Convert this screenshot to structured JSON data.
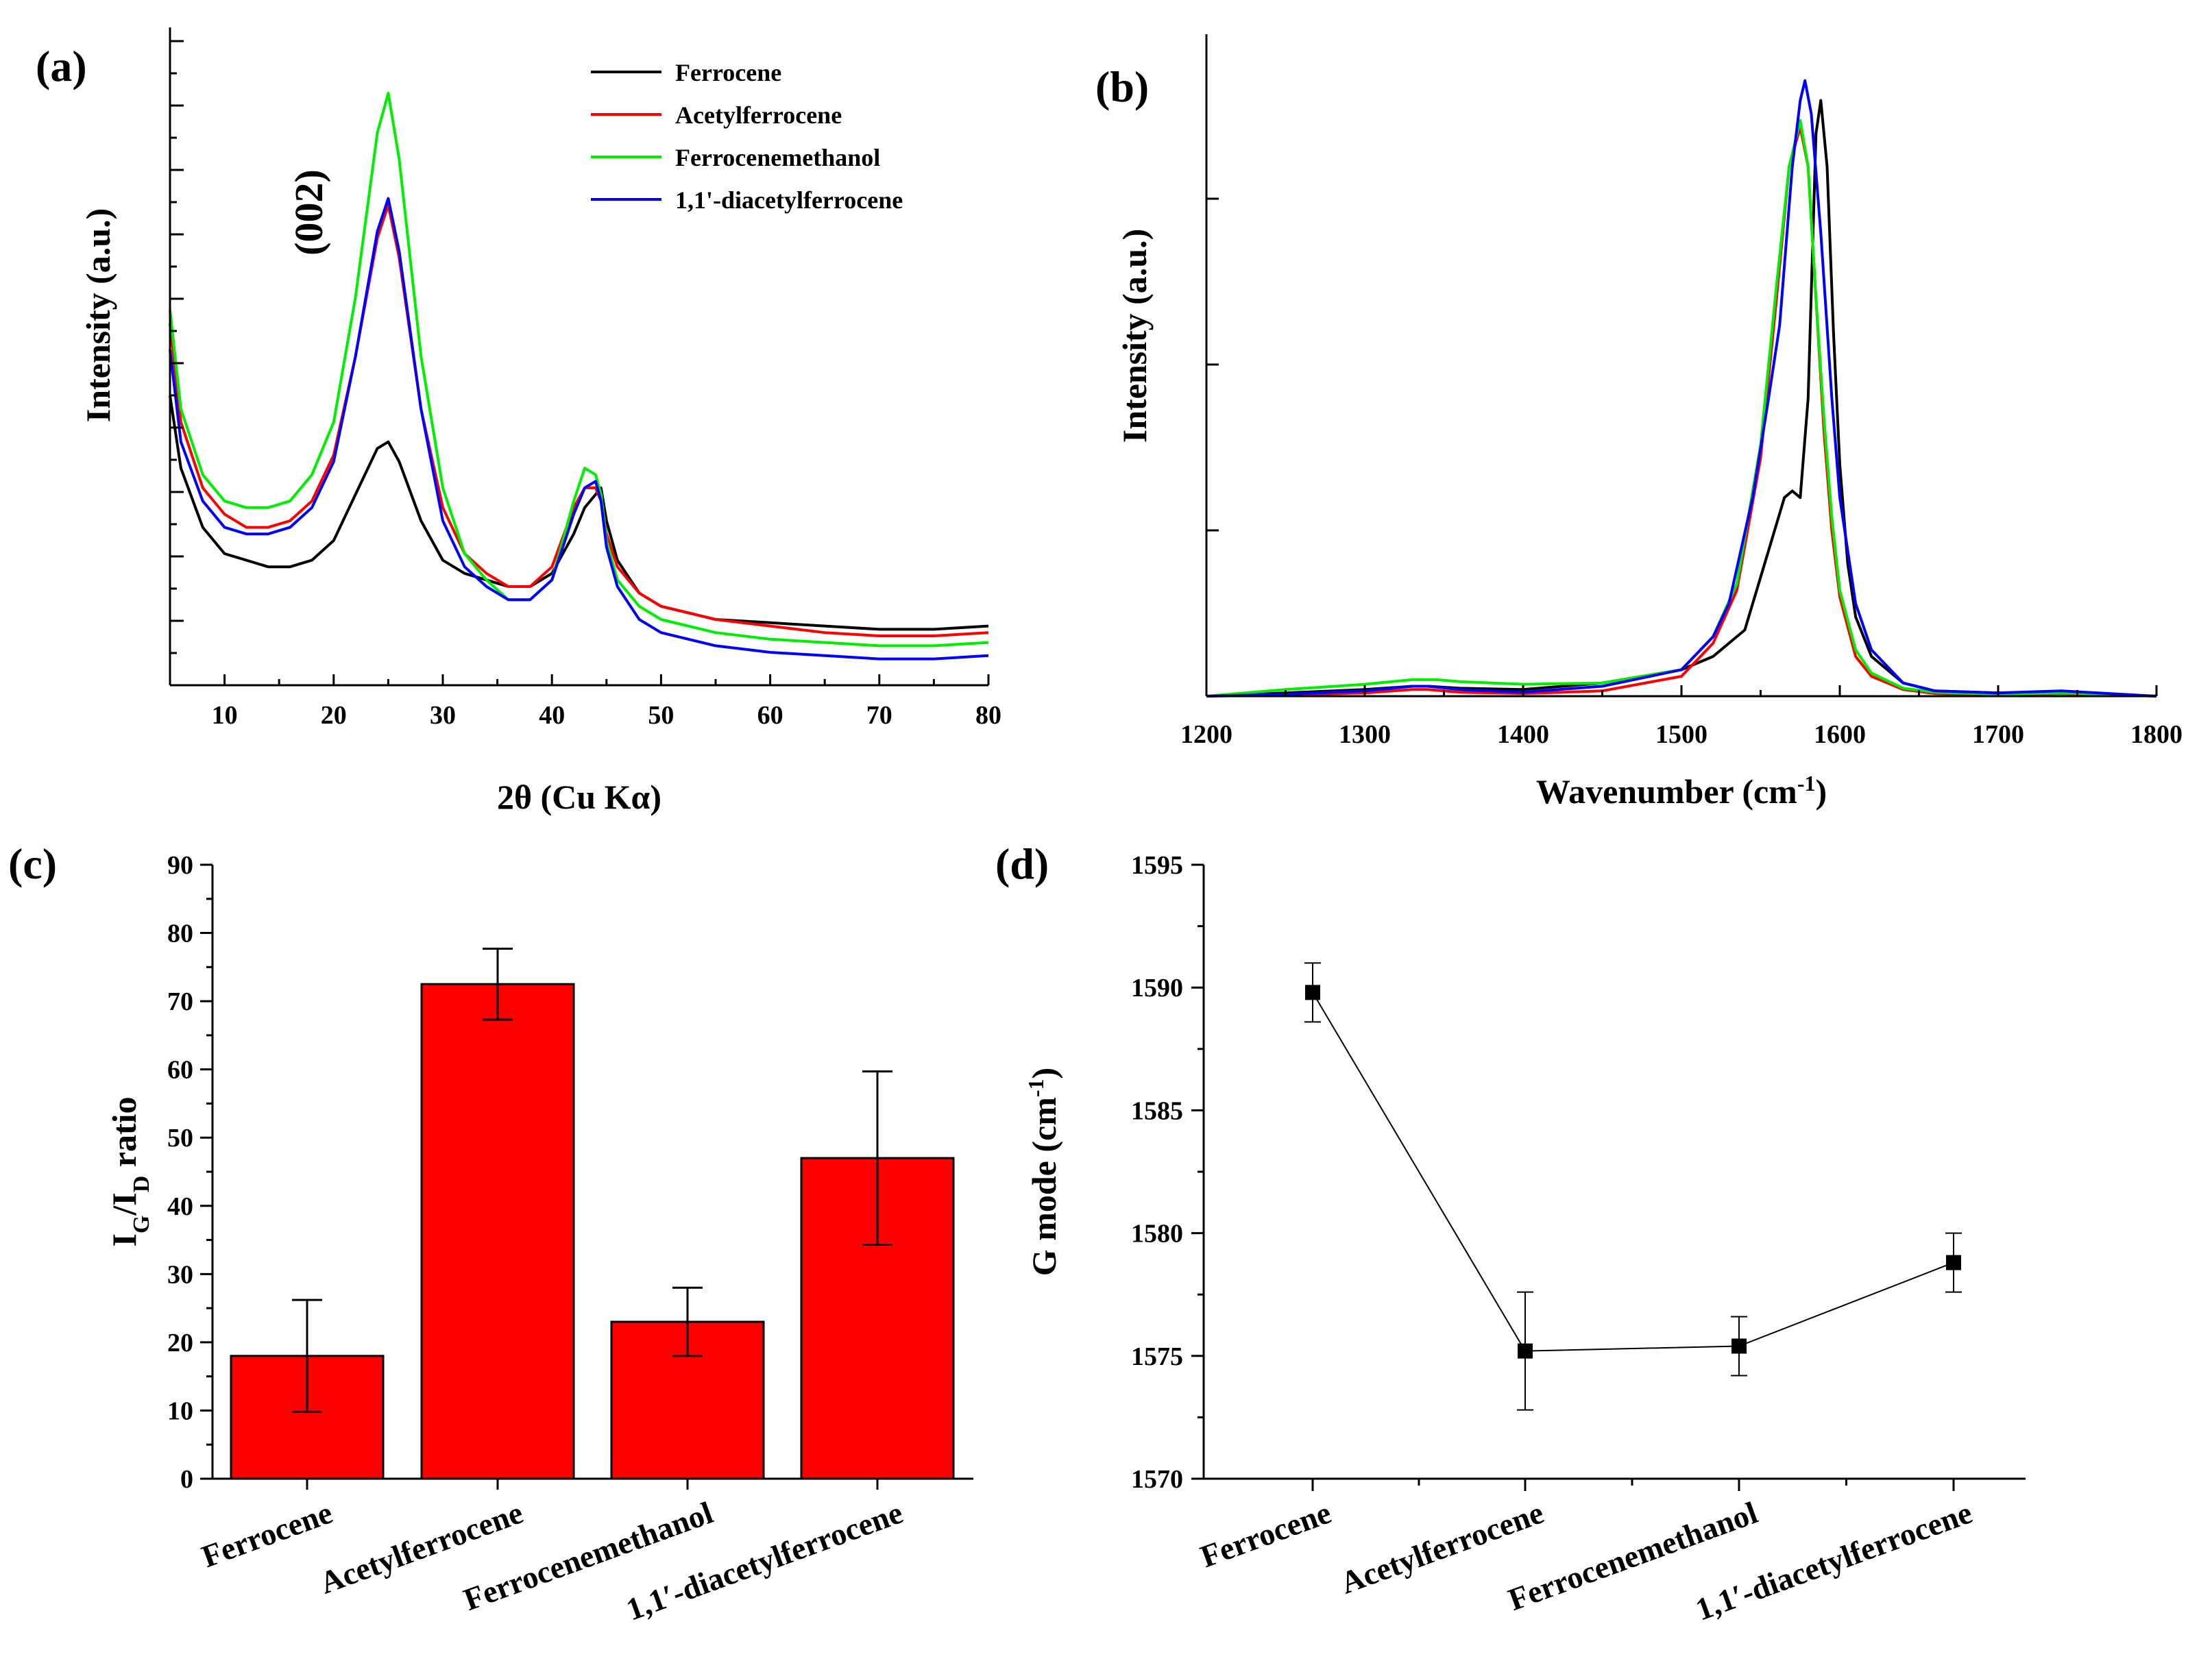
{
  "chart_data": [
    {
      "id": "a",
      "panel_label": "(a)",
      "type": "line",
      "xlabel": "2θ (Cu Kα)",
      "ylabel": "Intensity (a.u.)",
      "xlim": [
        5,
        80
      ],
      "ylim": [
        0,
        1
      ],
      "xticks": [
        10,
        20,
        30,
        40,
        50,
        60,
        70,
        80
      ],
      "annotation": "(002)",
      "legend_position": "top-right",
      "series": [
        {
          "name": "Ferrocene",
          "color": "#000000",
          "x": [
            5,
            6,
            8,
            10,
            12,
            14,
            16,
            18,
            20,
            22,
            24,
            25,
            26,
            28,
            30,
            32,
            34,
            36,
            38,
            40,
            42,
            43,
            44,
            44.5,
            45,
            46,
            48,
            50,
            55,
            60,
            65,
            70,
            75,
            80
          ],
          "y": [
            0.44,
            0.33,
            0.24,
            0.2,
            0.19,
            0.18,
            0.18,
            0.19,
            0.22,
            0.29,
            0.36,
            0.37,
            0.34,
            0.25,
            0.19,
            0.17,
            0.16,
            0.15,
            0.15,
            0.17,
            0.23,
            0.27,
            0.29,
            0.3,
            0.25,
            0.19,
            0.14,
            0.12,
            0.1,
            0.095,
            0.09,
            0.085,
            0.085,
            0.09
          ]
        },
        {
          "name": "Acetylferrocene",
          "color": "#ff0000",
          "x": [
            5,
            6,
            8,
            10,
            12,
            14,
            16,
            18,
            20,
            22,
            24,
            25,
            26,
            28,
            30,
            32,
            34,
            36,
            38,
            40,
            42,
            43,
            44,
            44.5,
            45,
            46,
            48,
            50,
            55,
            60,
            65,
            70,
            75,
            80
          ],
          "y": [
            0.55,
            0.4,
            0.3,
            0.26,
            0.24,
            0.24,
            0.25,
            0.28,
            0.35,
            0.5,
            0.68,
            0.73,
            0.65,
            0.42,
            0.27,
            0.2,
            0.17,
            0.15,
            0.15,
            0.18,
            0.27,
            0.3,
            0.3,
            0.28,
            0.23,
            0.18,
            0.14,
            0.12,
            0.1,
            0.09,
            0.08,
            0.075,
            0.075,
            0.08
          ]
        },
        {
          "name": "Ferrocenemethanol",
          "color": "#00ee00",
          "x": [
            5,
            6,
            8,
            10,
            12,
            14,
            16,
            18,
            20,
            22,
            24,
            25,
            26,
            28,
            30,
            32,
            34,
            36,
            38,
            40,
            42,
            43,
            44,
            44.5,
            45,
            46,
            48,
            50,
            55,
            60,
            65,
            70,
            75,
            80
          ],
          "y": [
            0.57,
            0.42,
            0.32,
            0.28,
            0.27,
            0.27,
            0.28,
            0.32,
            0.4,
            0.59,
            0.84,
            0.9,
            0.8,
            0.5,
            0.3,
            0.2,
            0.16,
            0.13,
            0.13,
            0.16,
            0.28,
            0.33,
            0.32,
            0.29,
            0.22,
            0.16,
            0.12,
            0.1,
            0.08,
            0.07,
            0.065,
            0.06,
            0.06,
            0.065
          ]
        },
        {
          "name": "1,1'-diacetylferrocene",
          "color": "#0000ff",
          "x": [
            5,
            6,
            8,
            10,
            12,
            14,
            16,
            18,
            20,
            22,
            24,
            25,
            26,
            28,
            30,
            32,
            34,
            36,
            38,
            40,
            42,
            43,
            44,
            44.5,
            45,
            46,
            48,
            50,
            55,
            60,
            65,
            70,
            75,
            80
          ],
          "y": [
            0.51,
            0.37,
            0.28,
            0.24,
            0.23,
            0.23,
            0.24,
            0.27,
            0.34,
            0.5,
            0.69,
            0.74,
            0.66,
            0.42,
            0.25,
            0.18,
            0.15,
            0.13,
            0.13,
            0.16,
            0.26,
            0.3,
            0.31,
            0.28,
            0.21,
            0.15,
            0.1,
            0.08,
            0.06,
            0.05,
            0.045,
            0.04,
            0.04,
            0.045
          ]
        }
      ]
    },
    {
      "id": "b",
      "panel_label": "(b)",
      "type": "line",
      "xlabel": "Wavenumber (cm",
      "xlabel_sup": "-1",
      "xlabel_end": ")",
      "ylabel": "Intensity (a.u.)",
      "xlim": [
        1200,
        1800
      ],
      "ylim": [
        0,
        1
      ],
      "xticks": [
        1200,
        1300,
        1400,
        1500,
        1600,
        1700,
        1800
      ],
      "series": [
        {
          "name": "Ferrocene",
          "color": "#000000",
          "x": [
            1200,
            1250,
            1300,
            1330,
            1340,
            1360,
            1400,
            1450,
            1500,
            1520,
            1540,
            1555,
            1565,
            1570,
            1575,
            1580,
            1585,
            1588,
            1592,
            1596,
            1600,
            1605,
            1610,
            1620,
            1640,
            1660,
            1700,
            1740,
            1800
          ],
          "y": [
            0.0,
            0.005,
            0.01,
            0.015,
            0.015,
            0.012,
            0.01,
            0.02,
            0.04,
            0.06,
            0.1,
            0.22,
            0.3,
            0.31,
            0.3,
            0.45,
            0.85,
            0.9,
            0.8,
            0.55,
            0.35,
            0.2,
            0.12,
            0.06,
            0.02,
            0.008,
            0.005,
            0.006,
            0.0
          ]
        },
        {
          "name": "Acetylferrocene",
          "color": "#ff0000",
          "x": [
            1200,
            1250,
            1300,
            1330,
            1340,
            1360,
            1400,
            1450,
            1500,
            1520,
            1535,
            1550,
            1560,
            1568,
            1575,
            1580,
            1585,
            1590,
            1595,
            1600,
            1610,
            1620,
            1640,
            1660,
            1700,
            1740,
            1800
          ],
          "y": [
            0.0,
            0.002,
            0.005,
            0.01,
            0.01,
            0.006,
            0.004,
            0.008,
            0.03,
            0.08,
            0.16,
            0.36,
            0.6,
            0.8,
            0.86,
            0.8,
            0.6,
            0.4,
            0.25,
            0.15,
            0.06,
            0.03,
            0.01,
            0.004,
            0.002,
            0.004,
            0.0
          ]
        },
        {
          "name": "Ferrocenemethanol",
          "color": "#00ee00",
          "x": [
            1200,
            1250,
            1300,
            1330,
            1345,
            1360,
            1400,
            1450,
            1500,
            1520,
            1535,
            1550,
            1560,
            1568,
            1575,
            1580,
            1585,
            1590,
            1595,
            1600,
            1610,
            1620,
            1640,
            1660,
            1700,
            1740,
            1800
          ],
          "y": [
            0.0,
            0.01,
            0.018,
            0.025,
            0.025,
            0.022,
            0.018,
            0.02,
            0.04,
            0.09,
            0.17,
            0.38,
            0.62,
            0.8,
            0.87,
            0.8,
            0.6,
            0.42,
            0.27,
            0.16,
            0.07,
            0.035,
            0.012,
            0.006,
            0.003,
            0.005,
            0.0
          ]
        },
        {
          "name": "1,1'-diacetylferrocene",
          "color": "#0000ff",
          "x": [
            1200,
            1250,
            1300,
            1330,
            1340,
            1360,
            1400,
            1450,
            1500,
            1520,
            1530,
            1545,
            1555,
            1562,
            1570,
            1575,
            1578,
            1582,
            1588,
            1595,
            1600,
            1610,
            1620,
            1640,
            1660,
            1700,
            1740,
            1800
          ],
          "y": [
            0.0,
            0.003,
            0.008,
            0.015,
            0.015,
            0.01,
            0.006,
            0.015,
            0.04,
            0.09,
            0.14,
            0.3,
            0.45,
            0.56,
            0.8,
            0.9,
            0.93,
            0.88,
            0.7,
            0.45,
            0.3,
            0.14,
            0.07,
            0.02,
            0.008,
            0.005,
            0.008,
            0.0
          ]
        }
      ]
    },
    {
      "id": "c",
      "panel_label": "(c)",
      "type": "bar",
      "ylabel_main": "I",
      "ylabel_sub1": "G",
      "ylabel_mid": "/I",
      "ylabel_sub2": "D",
      "ylabel_end": " ratio",
      "ylim": [
        0,
        90
      ],
      "yticks": [
        0,
        10,
        20,
        30,
        40,
        50,
        60,
        70,
        80,
        90
      ],
      "bar_color": "#ff0000",
      "categories": [
        "Ferrocene",
        "Acetylferrocene",
        "Ferrocenemethanol",
        "1,1′-diacetylferrocene"
      ],
      "values": [
        18,
        72.5,
        23,
        47
      ],
      "errors": [
        8.2,
        5.2,
        5.0,
        12.7
      ]
    },
    {
      "id": "d",
      "panel_label": "(d)",
      "type": "line",
      "ylabel": "G mode (cm",
      "ylabel_sup": "-1",
      "ylabel_end": ")",
      "ylim": [
        1570,
        1595
      ],
      "yticks": [
        1570,
        1575,
        1580,
        1585,
        1590,
        1595
      ],
      "categories": [
        "Ferrocene",
        "Acetylferrocene",
        "Ferrocenemethanol",
        "1,1′-diacetylferrocene"
      ],
      "values": [
        1589.8,
        1575.2,
        1575.4,
        1578.8
      ],
      "errors": [
        1.2,
        2.4,
        1.2,
        1.2
      ]
    }
  ]
}
